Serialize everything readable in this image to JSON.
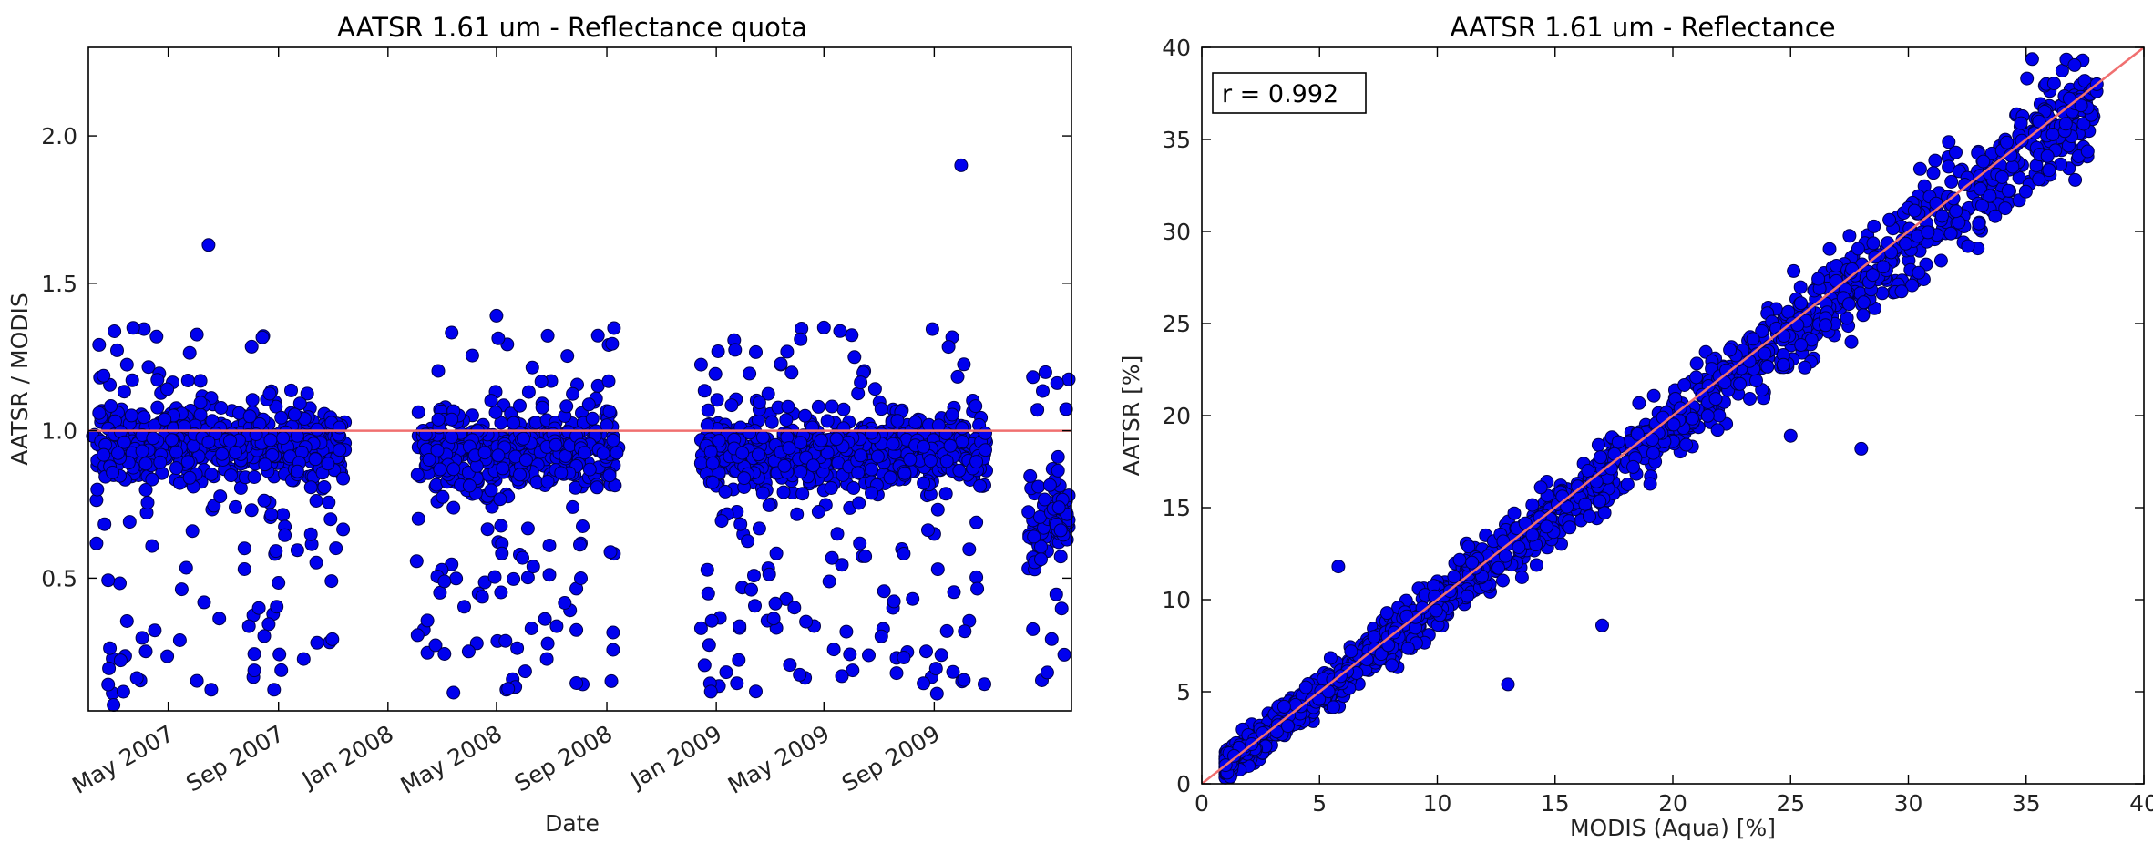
{
  "chart_data": [
    {
      "type": "scatter",
      "title": "AATSR 1.61 um - Reflectance quota",
      "xlabel": "Date",
      "ylabel": "AATSR / MODIS",
      "x_type": "date",
      "xlim": [
        "2007-02-01",
        "2010-02-01"
      ],
      "ylim": [
        0.05,
        2.3
      ],
      "x_tick_labels": [
        "May 2007",
        "Sep 2007",
        "Jan 2008",
        "May 2008",
        "Sep 2008",
        "Jan 2009",
        "May 2009",
        "Sep 2009"
      ],
      "y_tick_labels": [
        "0.5",
        "1.0",
        "1.5",
        "2.0"
      ],
      "reference_line": {
        "y": 1.0,
        "color": "#f07070"
      },
      "marker_color": "#0000ee",
      "grid": false,
      "notable_points": [
        {
          "date": "2007-06-15",
          "value": 1.63
        },
        {
          "date": "2009-10-01",
          "value": 1.9
        },
        {
          "date": "2008-05-01",
          "value": 1.39
        },
        {
          "date": "2009-05-01",
          "value": 1.35
        },
        {
          "date": "2008-12-15",
          "value": 0.33
        },
        {
          "date": "2007-03-01",
          "value": 0.07
        }
      ],
      "clusters": [
        {
          "from": "2007-02-01",
          "to": "2007-11-15",
          "typical_value": 0.95
        },
        {
          "from": "2008-02-01",
          "to": "2008-09-15",
          "typical_value": 0.93
        },
        {
          "from": "2008-12-15",
          "to": "2009-10-30",
          "typical_value": 0.93
        },
        {
          "from": "2009-12-15",
          "to": "2010-02-01",
          "typical_value": 0.7
        }
      ]
    },
    {
      "type": "scatter",
      "title": "AATSR 1.61 um - Reflectance",
      "xlabel": "MODIS (Aqua) [%]",
      "ylabel": "AATSR [%]",
      "xlim": [
        0,
        40
      ],
      "ylim": [
        0,
        40
      ],
      "x_ticks": [
        0,
        5,
        10,
        15,
        20,
        25,
        30,
        35,
        40
      ],
      "y_ticks": [
        0,
        5,
        10,
        15,
        20,
        25,
        30,
        35,
        40
      ],
      "annotation": "r = 0.992",
      "reference_line": {
        "type": "identity",
        "color": "#f07070"
      },
      "marker_color": "#0000ee",
      "grid": false,
      "notable_points": [
        {
          "x": 38,
          "y": 38
        },
        {
          "x": 30.5,
          "y": 33.4
        },
        {
          "x": 28,
          "y": 18.2
        },
        {
          "x": 25,
          "y": 18.9
        },
        {
          "x": 17,
          "y": 8.6
        },
        {
          "x": 5.8,
          "y": 11.8
        },
        {
          "x": 13,
          "y": 5.4
        }
      ],
      "cloud": {
        "x_range": [
          1,
          38
        ],
        "slope": 0.98,
        "spread": 1.0
      }
    }
  ]
}
